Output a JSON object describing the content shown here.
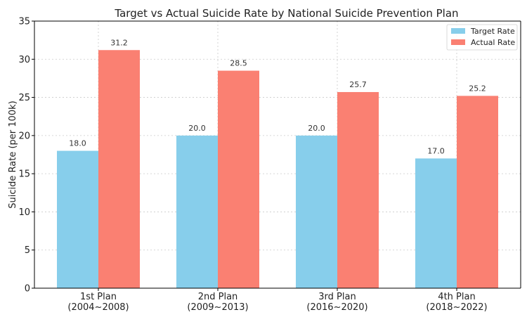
{
  "chart_data": {
    "type": "bar",
    "title": "Target vs Actual Suicide Rate by National Suicide Prevention Plan",
    "xlabel": "",
    "ylabel": "Suicide Rate (per 100k)",
    "categories": [
      [
        "1st Plan",
        "(2004~2008)"
      ],
      [
        "2nd Plan",
        "(2009~2013)"
      ],
      [
        "3rd Plan",
        "(2016~2020)"
      ],
      [
        "4th Plan",
        "(2018~2022)"
      ]
    ],
    "series": [
      {
        "name": "Target Rate",
        "color": "#87CEEB",
        "values": [
          18.0,
          20.0,
          20.0,
          17.0
        ],
        "labels": [
          "18.0",
          "20.0",
          "20.0",
          "17.0"
        ]
      },
      {
        "name": "Actual Rate",
        "color": "#FA8072",
        "values": [
          31.2,
          28.5,
          25.7,
          25.2
        ],
        "labels": [
          "31.2",
          "28.5",
          "25.7",
          "25.2"
        ]
      }
    ],
    "ylim": [
      0,
      35
    ],
    "yticks": [
      0,
      5,
      10,
      15,
      20,
      25,
      30,
      35
    ],
    "ytick_labels": [
      "0",
      "5",
      "10",
      "15",
      "20",
      "25",
      "30",
      "35"
    ],
    "grid": true,
    "legend": "top-right"
  }
}
